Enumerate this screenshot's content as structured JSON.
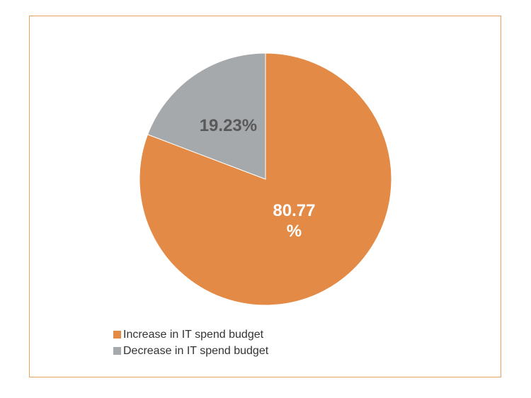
{
  "chart_data": {
    "type": "pie",
    "title": "",
    "slices": [
      {
        "label": "Increase in IT spend budget",
        "value": 80.77,
        "display": "80.77 %",
        "display_lines": [
          "80.77",
          "%"
        ],
        "color": "#e38a46"
      },
      {
        "label": "Decrease in IT spend budget",
        "value": 19.23,
        "display": "19.23%",
        "display_lines": [
          "19.23%"
        ],
        "color": "#a6a9ac"
      }
    ],
    "legend_position": "bottom-left",
    "label_colors": [
      "#ffffff",
      "#595959"
    ],
    "border_color": "#e8a061"
  }
}
